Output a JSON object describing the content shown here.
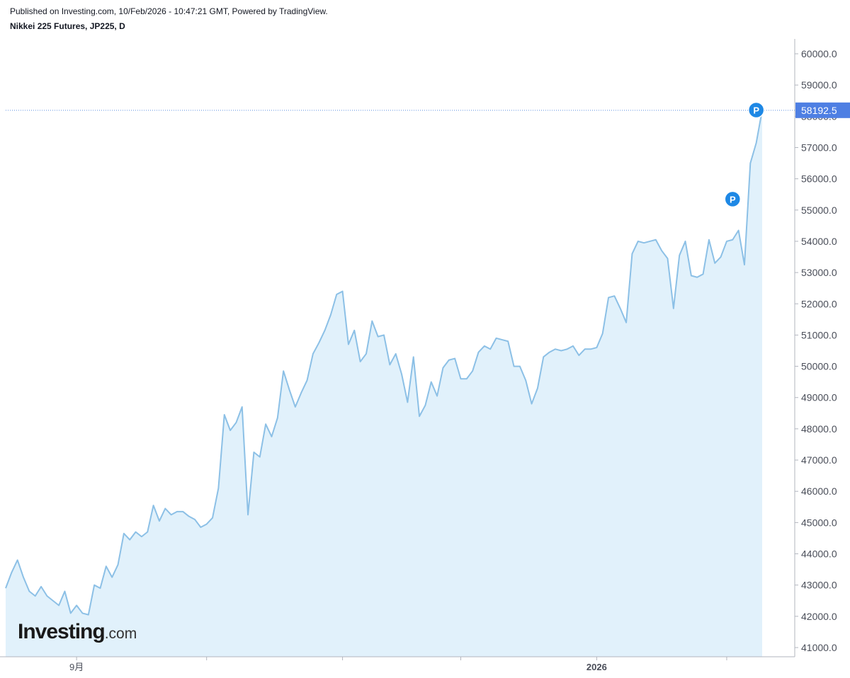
{
  "header": {
    "published": "Published on Investing.com, 10/Feb/2026 - 10:47:21 GMT, Powered by TradingView.",
    "symbol": "Nikkei 225 Futures, JP225, D"
  },
  "logo": {
    "main": "Investing",
    "domain": ".com"
  },
  "colors": {
    "line": "#8cc0e6",
    "fill": "#e1f1fb",
    "price_line": "#5b8fe0",
    "price_label_bg": "#4e7fe3",
    "marker": "#1e88e5"
  },
  "chart_data": {
    "type": "area",
    "ylim": [
      40750,
      60500
    ],
    "y_ticks": [
      {
        "value": 41000,
        "label": "41000.0"
      },
      {
        "value": 42000,
        "label": "42000.0"
      },
      {
        "value": 43000,
        "label": "43000.0"
      },
      {
        "value": 44000,
        "label": "44000.0"
      },
      {
        "value": 45000,
        "label": "45000.0"
      },
      {
        "value": 46000,
        "label": "46000.0"
      },
      {
        "value": 47000,
        "label": "47000.0"
      },
      {
        "value": 48000,
        "label": "48000.0"
      },
      {
        "value": 49000,
        "label": "49000.0"
      },
      {
        "value": 50000,
        "label": "50000.0"
      },
      {
        "value": 51000,
        "label": "51000.0"
      },
      {
        "value": 52000,
        "label": "52000.0"
      },
      {
        "value": 53000,
        "label": "53000.0"
      },
      {
        "value": 54000,
        "label": "54000.0"
      },
      {
        "value": 55000,
        "label": "55000.0"
      },
      {
        "value": 56000,
        "label": "56000.0"
      },
      {
        "value": 57000,
        "label": "57000.0"
      },
      {
        "value": 58000,
        "label": "58000.0"
      },
      {
        "value": 59000,
        "label": "59000.0"
      },
      {
        "value": 60000,
        "label": "60000.0"
      }
    ],
    "x_labels": [
      {
        "index": 12,
        "label": "9月",
        "bold": false
      },
      {
        "index": 100,
        "label": "2026",
        "bold": true
      }
    ],
    "x_ticks_minor": [
      12,
      34,
      57,
      77,
      100,
      122
    ],
    "last_price": {
      "value": 58192.5,
      "label": "58192.5"
    },
    "markers": [
      {
        "index": 123,
        "value": 55350,
        "label": "P"
      },
      {
        "index": 127,
        "value": 58200,
        "label": "P"
      }
    ],
    "series": [
      {
        "values": [
          42900,
          43400,
          43800,
          43250,
          42800,
          42650,
          42950,
          42650,
          42500,
          42350,
          42800,
          42100,
          42350,
          42100,
          42050,
          43000,
          42900,
          43600,
          43250,
          43650,
          44650,
          44450,
          44700,
          44550,
          44700,
          45550,
          45050,
          45450,
          45250,
          45350,
          45350,
          45200,
          45100,
          44850,
          44950,
          45150,
          46100,
          48450,
          47950,
          48200,
          48700,
          45250,
          47250,
          47100,
          48150,
          47750,
          48350,
          49850,
          49250,
          48700,
          49150,
          49550,
          50400,
          50750,
          51150,
          51650,
          52300,
          52400,
          50700,
          51150,
          50150,
          50400,
          51450,
          50950,
          51000,
          50050,
          50400,
          49750,
          48850,
          50300,
          48400,
          48750,
          49500,
          49050,
          49950,
          50200,
          50250,
          49600,
          49600,
          49850,
          50450,
          50650,
          50550,
          50900,
          50850,
          50800,
          50000,
          50000,
          49550,
          48800,
          49300,
          50300,
          50450,
          50550,
          50500,
          50550,
          50650,
          50350,
          50550,
          50550,
          50600,
          51050,
          52200,
          52250,
          51850,
          51400,
          53600,
          54000,
          53950,
          54000,
          54050,
          53700,
          53450,
          51850,
          53550,
          54000,
          52900,
          52850,
          52950,
          54050,
          53300,
          53500,
          54000,
          54050,
          54350,
          53250,
          56500,
          57150,
          58192.5
        ]
      }
    ]
  }
}
